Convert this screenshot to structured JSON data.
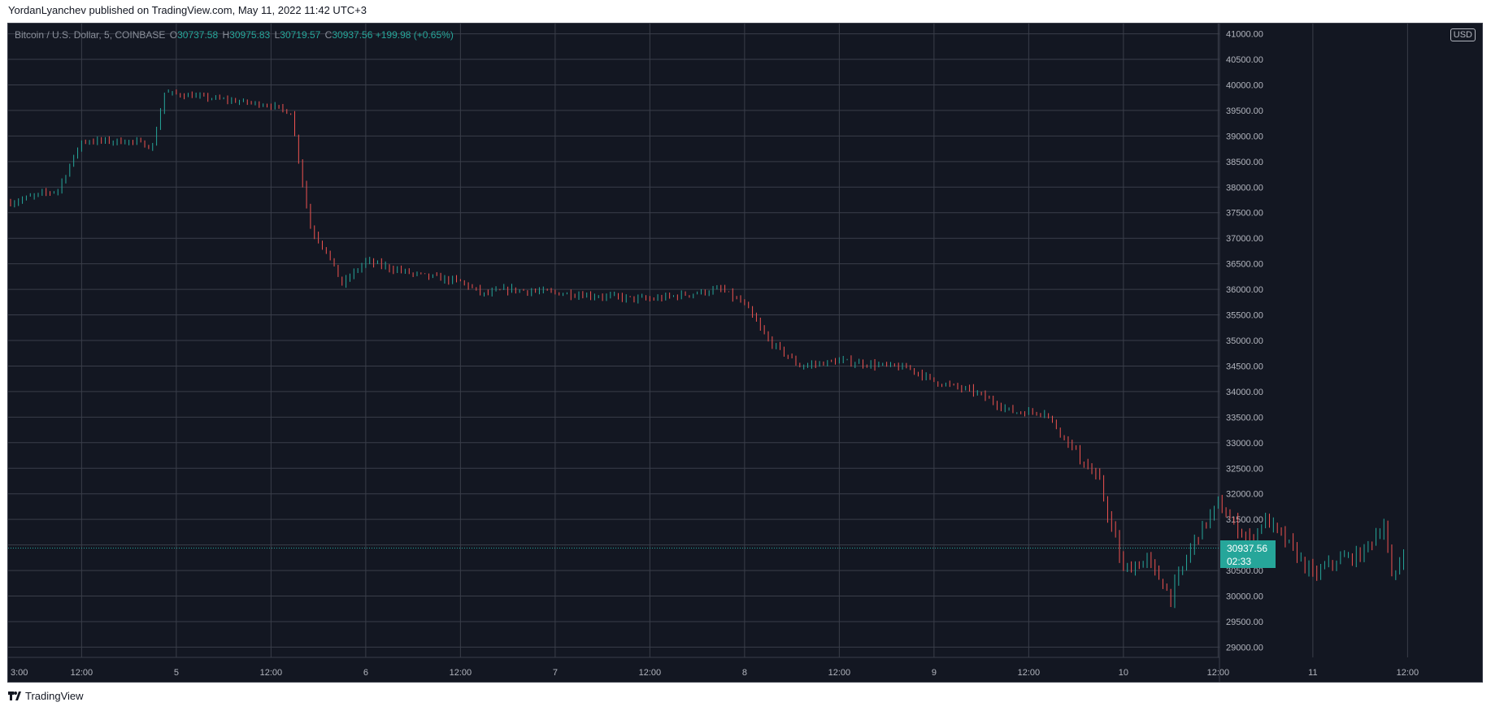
{
  "header": {
    "text": "YordanLyanchev published on TradingView.com, May 11, 2022 11:42 UTC+3"
  },
  "legend": {
    "symbol": "Bitcoin / U.S. Dollar, 5, COINBASE",
    "open_label": "O",
    "open": "30737.58",
    "high_label": "H",
    "high": "30975.83",
    "low_label": "L",
    "low": "30719.57",
    "close_label": "C",
    "close": "30937.56",
    "change": "+199.98 (+0.65%)"
  },
  "currency": "USD",
  "last_price": {
    "price": "30937.56",
    "countdown": "02:33"
  },
  "footer": {
    "brand": "TradingView"
  },
  "colors": {
    "background": "#131722",
    "up": "#26a69a",
    "down": "#ef5350",
    "grid": "#3a3e4a",
    "axis_text": "#b2b5be"
  },
  "chart_data": {
    "type": "line",
    "title": "Bitcoin / U.S. Dollar, 5, COINBASE",
    "interval": "5",
    "xlabel": "",
    "ylabel": "",
    "x_ticks": [
      "3:00",
      "12:00",
      "5",
      "12:00",
      "6",
      "12:00",
      "7",
      "12:00",
      "8",
      "12:00",
      "9",
      "12:00",
      "10",
      "12:00",
      "11",
      "12:00"
    ],
    "y_ticks": [
      "41000.00",
      "40500.00",
      "40000.00",
      "39500.00",
      "39000.00",
      "38500.00",
      "38000.00",
      "37500.00",
      "37000.00",
      "36500.00",
      "36000.00",
      "35500.00",
      "35000.00",
      "34500.00",
      "34000.00",
      "33500.00",
      "33000.00",
      "32500.00",
      "32000.00",
      "31500.00",
      "31000.00",
      "30500.00",
      "30000.00",
      "29500.00",
      "29000.00"
    ],
    "ylim": [
      28800,
      41200
    ],
    "grid": true,
    "last_value": 30937.56,
    "series": [
      {
        "x": [
          "May 4 03:00",
          "May 4 09:00",
          "May 4 12:00",
          "May 4 18:00",
          "May 4 21:00",
          "May 4 22:30",
          "May 5 12:00",
          "May 5 14:30",
          "May 5 17:00",
          "May 5 19:00",
          "May 5 21:00",
          "May 6 00:00",
          "May 6 06:00",
          "May 6 12:00",
          "May 6 15:00",
          "May 6 18:00",
          "May 7 12:00",
          "May 7 21:00",
          "May 8 00:00",
          "May 8 03:00",
          "May 8 07:00",
          "May 8 12:00",
          "May 8 21:00",
          "May 9 00:00",
          "May 9 05:00",
          "May 9 10:00",
          "May 9 14:00",
          "May 9 18:00",
          "May 9 21:00",
          "May 10 00:00",
          "May 10 03:00",
          "May 10 06:00",
          "May 10 09:00",
          "May 10 12:00",
          "May 10 14:00",
          "May 10 16:00",
          "May 10 18:00",
          "May 10 21:00",
          "May 11 00:00",
          "May 11 03:00",
          "May 11 06:00",
          "May 11 09:00",
          "May 11 10:00",
          "May 11 11:40"
        ],
        "y": [
          37700,
          37950,
          38900,
          38900,
          38800,
          39850,
          39600,
          39450,
          37200,
          36750,
          36100,
          36550,
          36300,
          36150,
          35900,
          36000,
          35800,
          36000,
          35700,
          35000,
          34500,
          34600,
          34450,
          34200,
          34000,
          33600,
          33600,
          32800,
          32200,
          30500,
          30700,
          30000,
          31100,
          31800,
          31400,
          31100,
          31500,
          31000,
          30400,
          30700,
          30800,
          31400,
          30300,
          30937.56
        ]
      }
    ]
  }
}
